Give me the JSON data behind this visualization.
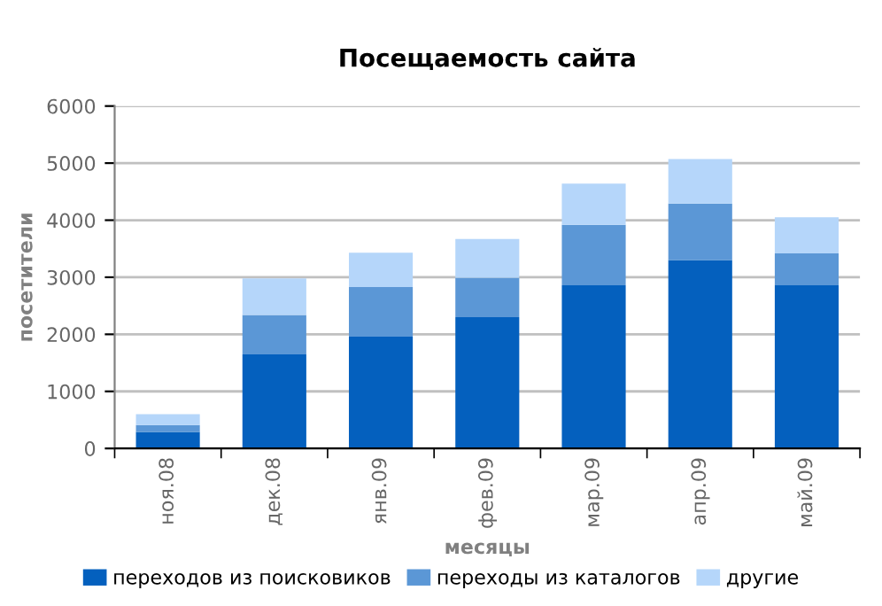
{
  "chart_data": {
    "type": "bar",
    "title": "Посещаемость сайта",
    "xlabel": "месяцы",
    "ylabel": "посетители",
    "categories": [
      "ноя.08",
      "дек.08",
      "янв.09",
      "фев.09",
      "мар.09",
      "апр.09",
      "май.09"
    ],
    "stacked": true,
    "series": [
      {
        "name": "переходов из поисковиков",
        "color": "#0460be",
        "values": [
          290,
          1650,
          1960,
          2300,
          2860,
          3300,
          2860
        ]
      },
      {
        "name": "переходы из каталогов",
        "color": "#5b97d6",
        "values": [
          120,
          690,
          870,
          690,
          1060,
          990,
          560
        ]
      },
      {
        "name": "другие",
        "color": "#b5d6fa",
        "values": [
          190,
          640,
          600,
          680,
          720,
          780,
          630
        ]
      }
    ],
    "ylim": [
      0,
      6000
    ],
    "yticks": [
      0,
      1000,
      2000,
      3000,
      4000,
      5000,
      6000
    ],
    "grid": "y",
    "legend": "bottom"
  }
}
